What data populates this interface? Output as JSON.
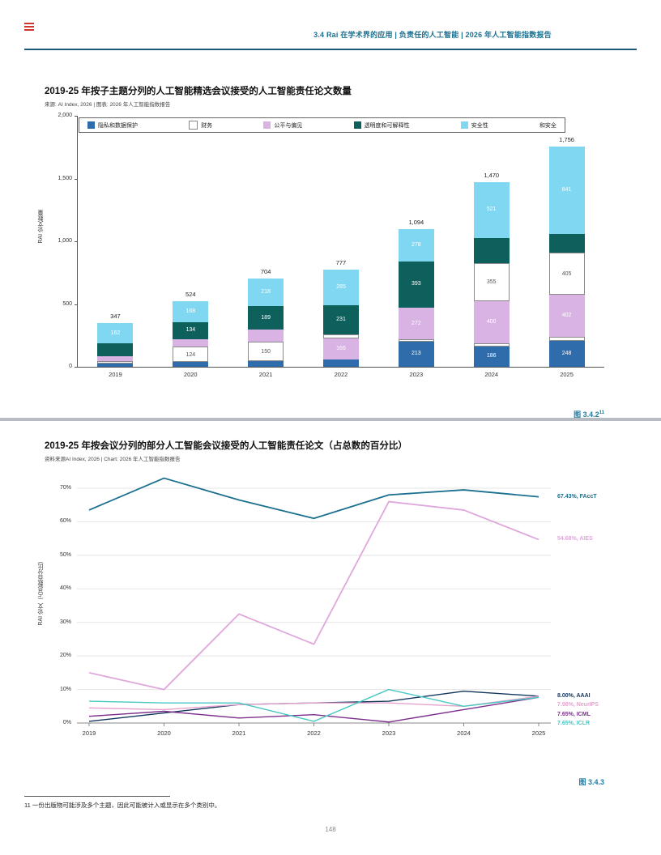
{
  "page": {
    "header": "3.4 Rai 在学术界的应用 | 负责任的人工智能 | 2026 年人工智能指数报告",
    "footnote_ref": "11",
    "footnote_text": "一份出版物可能涉及多个主题，因此可能被计入或显示在多个类别中。",
    "page_number": "148"
  },
  "chart_data": [
    {
      "type": "bar",
      "stacked": true,
      "title": "2019-25 年按子主题分列的人工智能精选会议接受的人工智能责任论文数量",
      "source": "来源: AI Index, 2026 | 图表: 2026 年人工智能指数报告",
      "ylabel": "RAI 论文数量",
      "caption": "图 3.4.2",
      "caption_note": "11",
      "ylim": [
        0,
        2000
      ],
      "yticks": [
        "0",
        "500",
        "1,000",
        "1,500",
        "2,000"
      ],
      "categories": [
        "2019",
        "2020",
        "2021",
        "2022",
        "2023",
        "2024",
        "2025"
      ],
      "totals": [
        347,
        524,
        704,
        777,
        1094,
        1470,
        1756
      ],
      "total_labels": [
        "347",
        "524",
        "704",
        "777",
        "1,094",
        "1,470",
        "1,756"
      ],
      "colors": {
        "blue": "#2e6cac",
        "white": "#ffffff",
        "pink": "#d9b3e3",
        "teal": "#0e605c",
        "cyan": "#7fd7f2"
      },
      "legend": [
        {
          "label": "隐私和数据保护",
          "color": "#2e6cac"
        },
        {
          "label": "财务",
          "color": "#ffffff"
        },
        {
          "label": "公平与偏见",
          "color": "#d9b3e3"
        },
        {
          "label": "透明度和可解释性",
          "color": "#0e605c"
        },
        {
          "label": "安全性",
          "color": "#7fd7f2"
        },
        {
          "label": "和安全",
          "color": null
        }
      ],
      "bars": [
        {
          "year": "2019",
          "segments": [
            {
              "c": "blue",
              "v": 25
            },
            {
              "c": "white",
              "v": 18
            },
            {
              "c": "pink",
              "v": 40
            },
            {
              "c": "teal",
              "v": 102
            },
            {
              "c": "cyan",
              "v": 162,
              "label": "162"
            }
          ]
        },
        {
          "year": "2020",
          "segments": [
            {
              "c": "blue",
              "v": 40
            },
            {
              "c": "white",
              "v": 124,
              "label": "124"
            },
            {
              "c": "pink",
              "v": 58
            },
            {
              "c": "teal",
              "v": 134,
              "label": "134"
            },
            {
              "c": "cyan",
              "v": 168,
              "label": "168"
            }
          ]
        },
        {
          "year": "2021",
          "segments": [
            {
              "c": "blue",
              "v": 47
            },
            {
              "c": "white",
              "v": 150,
              "label": "150"
            },
            {
              "c": "pink",
              "v": 100
            },
            {
              "c": "teal",
              "v": 189,
              "label": "189"
            },
            {
              "c": "cyan",
              "v": 218,
              "label": "218"
            }
          ]
        },
        {
          "year": "2022",
          "segments": [
            {
              "c": "blue",
              "v": 60
            },
            {
              "c": "pink",
              "v": 166,
              "label": "166"
            },
            {
              "c": "white",
              "v": 35
            },
            {
              "c": "teal",
              "v": 231,
              "label": "231"
            },
            {
              "c": "cyan",
              "v": 285,
              "label": "285"
            }
          ]
        },
        {
          "year": "2023",
          "segments": [
            {
              "c": "blue",
              "v": 213,
              "label": "213"
            },
            {
              "c": "white",
              "v": 25
            },
            {
              "c": "pink",
              "v": 272,
              "label": "272"
            },
            {
              "c": "teal",
              "v": 393,
              "label": "393"
            },
            {
              "c": "cyan",
              "v": 278,
              "label": "278"
            }
          ]
        },
        {
          "year": "2024",
          "segments": [
            {
              "c": "blue",
              "v": 186,
              "label": "186"
            },
            {
              "c": "white",
              "v": 30
            },
            {
              "c": "pink",
              "v": 400,
              "label": "400"
            },
            {
              "c": "white",
              "v": 355,
              "label": "355"
            },
            {
              "c": "teal",
              "v": 230
            },
            {
              "c": "cyan",
              "v": 521,
              "label": "521"
            }
          ]
        },
        {
          "year": "2025",
          "segments": [
            {
              "c": "blue",
              "v": 248,
              "label": "248"
            },
            {
              "c": "white",
              "v": 40
            },
            {
              "c": "pink",
              "v": 402,
              "label": "402"
            },
            {
              "c": "white",
              "v": 405,
              "label": "405"
            },
            {
              "c": "teal",
              "v": 180
            },
            {
              "c": "cyan",
              "v": 841,
              "label": "841"
            }
          ]
        }
      ]
    },
    {
      "type": "line",
      "title": "2019-25 年按会议分列的部分人工智能会议接受的人工智能责任论文（占总数的百分比）",
      "source": "资料来源AI Index, 2026 | Chart: 2026 年人工智能指数报告",
      "ylabel": "RAI 论文（占总数百分比）",
      "caption": "图 3.4.3",
      "ylim": [
        0,
        70
      ],
      "yticks": [
        "0%",
        "10%",
        "20%",
        "30%",
        "40%",
        "50%",
        "60%",
        "70%"
      ],
      "x": [
        "2019",
        "2020",
        "2021",
        "2022",
        "2023",
        "2024",
        "2025"
      ],
      "grid": true,
      "legend_position": "right-end-labels",
      "series": [
        {
          "name": "FAccT",
          "color": "#1b6f8f",
          "end_label": "67.43%, FAccT",
          "values": [
            63.5,
            73,
            66.5,
            61,
            68,
            69.5,
            67.43
          ]
        },
        {
          "name": "AIES",
          "color": "#dfa8dc",
          "end_label": "54.68%, AIES",
          "values": [
            15,
            10,
            32.5,
            23.5,
            66,
            63.5,
            54.68
          ]
        },
        {
          "name": "AAAI",
          "color": "#14365e",
          "end_label": "8.00%, AAAI",
          "values": [
            0.5,
            3,
            5.5,
            6,
            6.5,
            9.5,
            8.0
          ]
        },
        {
          "name": "NeurIPS",
          "color": "#e5a3cd",
          "end_label": "7.98%, NeurIPS",
          "values": [
            4.5,
            4,
            5.5,
            6,
            6,
            5,
            7.98
          ]
        },
        {
          "name": "ICML",
          "color": "#7d2e8d",
          "end_label": "7.65%, ICML",
          "values": [
            2,
            3.5,
            1.5,
            2.5,
            0.3,
            4,
            7.65
          ]
        },
        {
          "name": "ICLR",
          "color": "#49c7c1",
          "end_label": "7.65%, ICLR",
          "values": [
            6.5,
            6,
            6,
            0.5,
            10,
            5,
            7.65
          ]
        }
      ]
    }
  ]
}
